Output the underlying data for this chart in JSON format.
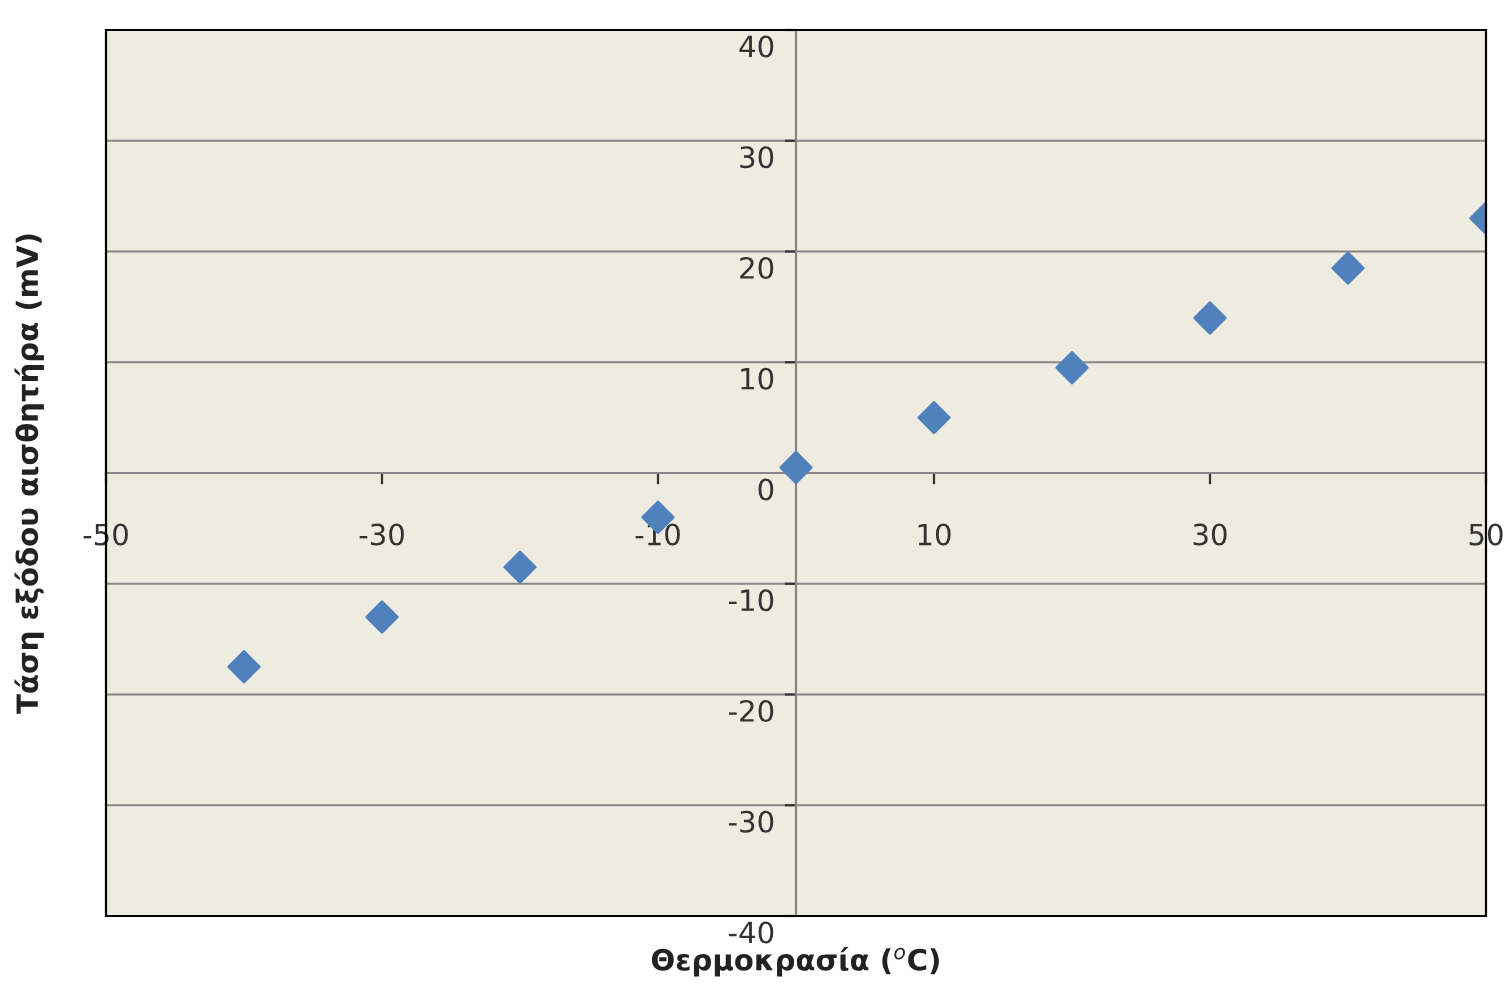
{
  "chart_data": {
    "type": "scatter",
    "xlabel": "Θερμοκρασία ($^{o}$C)",
    "ylabel": "Τάση εξόδου αισθητήρα (mV)",
    "x": [
      -40,
      -30,
      -20,
      -10,
      0,
      10,
      20,
      30,
      40,
      50
    ],
    "series": [
      {
        "color": "#4f81bd",
        "values": [
          -17.5,
          -13,
          -8.5,
          -4,
          0.5,
          5,
          9.5,
          14,
          18.5,
          23
        ]
      }
    ],
    "xlim": [
      -50,
      50
    ],
    "xticks": [
      -50,
      -30,
      -10,
      10,
      30,
      50
    ],
    "ylim": [
      -40,
      40
    ],
    "yticks": [
      -40,
      -30,
      -20,
      -10,
      0,
      10,
      20,
      30,
      40
    ],
    "grid": "y",
    "marker": "diamond"
  }
}
